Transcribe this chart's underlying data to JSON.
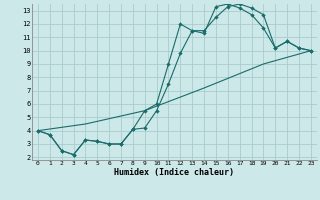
{
  "xlabel": "Humidex (Indice chaleur)",
  "bg_color": "#cce8e8",
  "grid_color": "#aacccc",
  "line_color": "#1a6b6b",
  "xlim": [
    -0.5,
    23.5
  ],
  "ylim": [
    1.8,
    13.5
  ],
  "yticks": [
    2,
    3,
    4,
    5,
    6,
    7,
    8,
    9,
    10,
    11,
    12,
    13
  ],
  "xticks": [
    0,
    1,
    2,
    3,
    4,
    5,
    6,
    7,
    8,
    9,
    10,
    11,
    12,
    13,
    14,
    15,
    16,
    17,
    18,
    19,
    20,
    21,
    22,
    23
  ],
  "line1_x": [
    0,
    1,
    2,
    3,
    4,
    5,
    6,
    7,
    8,
    9,
    10,
    11,
    12,
    13,
    14,
    15,
    16,
    17,
    18,
    19,
    20,
    21,
    22,
    23
  ],
  "line1_y": [
    4.0,
    3.7,
    2.5,
    2.2,
    3.3,
    3.2,
    3.0,
    3.0,
    4.1,
    5.5,
    6.0,
    9.0,
    12.0,
    11.5,
    11.5,
    12.5,
    13.3,
    13.5,
    13.2,
    12.7,
    10.2,
    10.7,
    10.2,
    10.0
  ],
  "line2_x": [
    0,
    1,
    2,
    3,
    4,
    5,
    6,
    7,
    8,
    9,
    10,
    11,
    12,
    13,
    14,
    15,
    16,
    17,
    18,
    19,
    20,
    21,
    22,
    23
  ],
  "line2_y": [
    4.0,
    3.7,
    2.5,
    2.2,
    3.3,
    3.2,
    3.0,
    3.0,
    4.1,
    4.2,
    5.5,
    7.5,
    9.8,
    11.5,
    11.3,
    13.3,
    13.5,
    13.2,
    12.7,
    11.7,
    10.2,
    10.7,
    10.2,
    10.0
  ],
  "line3_x": [
    0,
    4,
    9,
    14,
    19,
    23
  ],
  "line3_y": [
    4.0,
    4.5,
    5.5,
    7.2,
    9.0,
    10.0
  ]
}
